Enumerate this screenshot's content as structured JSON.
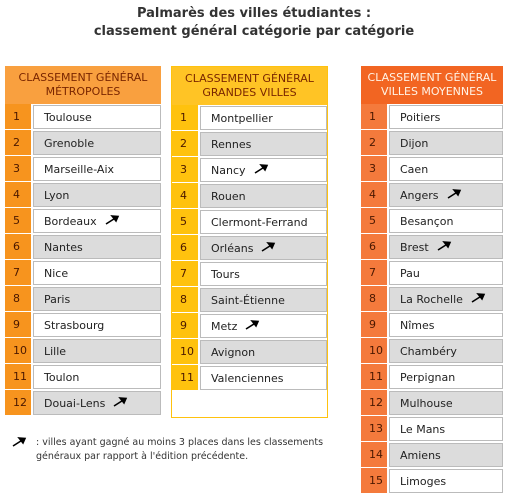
{
  "title": {
    "line1": "Palmarès des villes étudiantes :",
    "line2": "classement général catégorie par catégorie"
  },
  "columns": [
    {
      "header1": "CLASSEMENT GÉNÉRAL",
      "header2": "MÉTROPOLES",
      "rows": [
        {
          "rank": 1,
          "city": "Toulouse"
        },
        {
          "rank": 2,
          "city": "Grenoble"
        },
        {
          "rank": 3,
          "city": "Marseille-Aix"
        },
        {
          "rank": 4,
          "city": "Lyon"
        },
        {
          "rank": 5,
          "city": "Bordeaux",
          "arrow": true
        },
        {
          "rank": 6,
          "city": "Nantes"
        },
        {
          "rank": 7,
          "city": "Nice"
        },
        {
          "rank": 8,
          "city": "Paris"
        },
        {
          "rank": 9,
          "city": "Strasbourg"
        },
        {
          "rank": 10,
          "city": "Lille"
        },
        {
          "rank": 11,
          "city": "Toulon"
        },
        {
          "rank": 12,
          "city": "Douai-Lens",
          "arrow": true
        }
      ]
    },
    {
      "header1": "CLASSEMENT GÉNÉRAL",
      "header2": "GRANDES VILLES",
      "rows": [
        {
          "rank": 1,
          "city": "Montpellier"
        },
        {
          "rank": 2,
          "city": "Rennes"
        },
        {
          "rank": 3,
          "city": "Nancy",
          "arrow": true
        },
        {
          "rank": 4,
          "city": "Rouen"
        },
        {
          "rank": 5,
          "city": "Clermont-Ferrand"
        },
        {
          "rank": 6,
          "city": "Orléans",
          "arrow": true
        },
        {
          "rank": 7,
          "city": "Tours"
        },
        {
          "rank": 8,
          "city": "Saint-Étienne"
        },
        {
          "rank": 9,
          "city": "Metz",
          "arrow": true
        },
        {
          "rank": 10,
          "city": "Avignon"
        },
        {
          "rank": 11,
          "city": "Valenciennes"
        }
      ]
    },
    {
      "header1": "CLASSEMENT GÉNÉRAL",
      "header2": "VILLES MOYENNES",
      "rows": [
        {
          "rank": 1,
          "city": "Poitiers"
        },
        {
          "rank": 2,
          "city": "Dijon"
        },
        {
          "rank": 3,
          "city": "Caen"
        },
        {
          "rank": 4,
          "city": "Angers",
          "arrow": true
        },
        {
          "rank": 5,
          "city": "Besançon"
        },
        {
          "rank": 6,
          "city": "Brest",
          "arrow": true
        },
        {
          "rank": 7,
          "city": "Pau"
        },
        {
          "rank": 8,
          "city": "La Rochelle",
          "arrow": true
        },
        {
          "rank": 9,
          "city": "Nîmes"
        },
        {
          "rank": 10,
          "city": "Chambéry"
        },
        {
          "rank": 11,
          "city": "Perpignan"
        },
        {
          "rank": 12,
          "city": "Mulhouse"
        },
        {
          "rank": 13,
          "city": "Le Mans"
        },
        {
          "rank": 14,
          "city": "Amiens"
        },
        {
          "rank": 15,
          "city": "Limoges"
        }
      ]
    }
  ],
  "legend": {
    "text": ": villes ayant gagné au moins 3 places dans les classements généraux par rapport à l'édition précédente."
  }
}
